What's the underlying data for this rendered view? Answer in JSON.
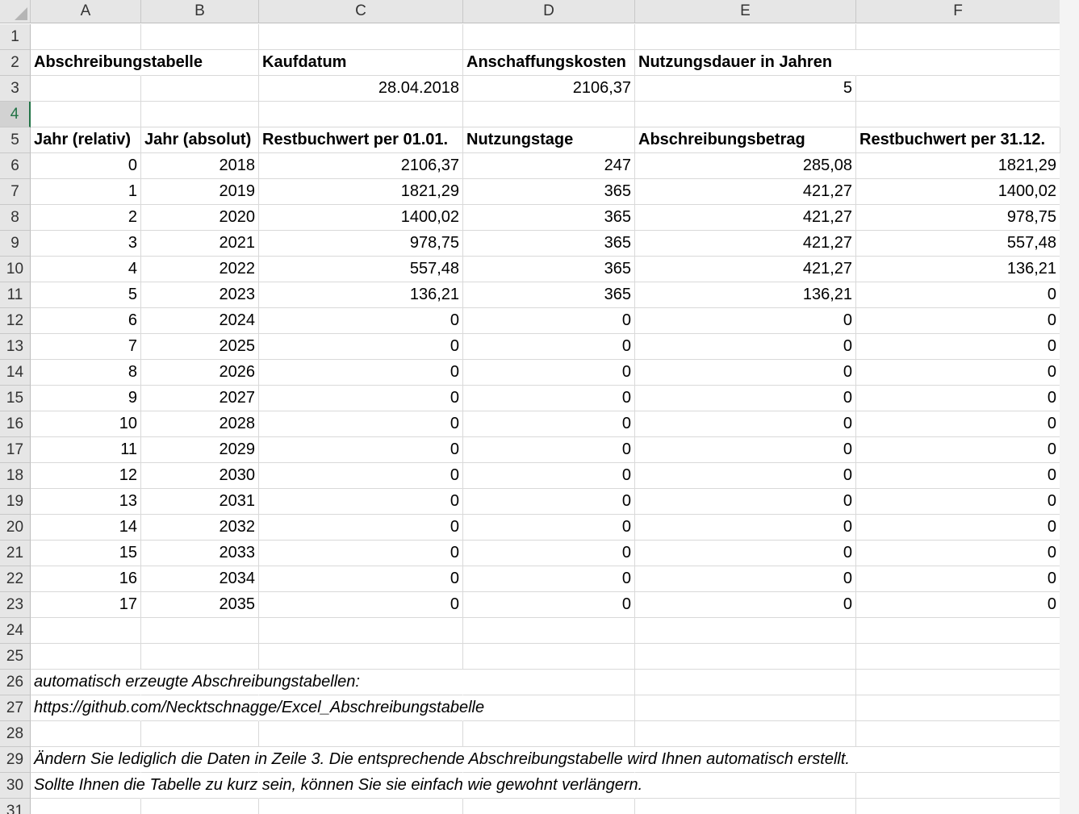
{
  "columns": [
    "A",
    "B",
    "C",
    "D",
    "E",
    "F"
  ],
  "row_numbers": [
    "1",
    "2",
    "3",
    "4",
    "5",
    "6",
    "7",
    "8",
    "9",
    "10",
    "11",
    "12",
    "13",
    "14",
    "15",
    "16",
    "17",
    "18",
    "19",
    "20",
    "21",
    "22",
    "23",
    "24",
    "25",
    "26",
    "27",
    "28",
    "29",
    "30",
    "31"
  ],
  "info": {
    "title": "Abschreibungstabelle",
    "purchase_date_label": "Kaufdatum",
    "cost_label": "Anschaffungskosten",
    "life_label": "Nutzungsdauer in Jahren",
    "purchase_date": "28.04.2018",
    "cost": "2106,37",
    "life": "5"
  },
  "table_headers": [
    "Jahr (relativ)",
    "Jahr (absolut)",
    "Restbuchwert per 01.01.",
    "Nutzungstage",
    "Abschreibungsbetrag",
    "Restbuchwert per 31.12."
  ],
  "table_rows": [
    [
      "0",
      "2018",
      "2106,37",
      "247",
      "285,08",
      "1821,29"
    ],
    [
      "1",
      "2019",
      "1821,29",
      "365",
      "421,27",
      "1400,02"
    ],
    [
      "2",
      "2020",
      "1400,02",
      "365",
      "421,27",
      "978,75"
    ],
    [
      "3",
      "2021",
      "978,75",
      "365",
      "421,27",
      "557,48"
    ],
    [
      "4",
      "2022",
      "557,48",
      "365",
      "421,27",
      "136,21"
    ],
    [
      "5",
      "2023",
      "136,21",
      "365",
      "136,21",
      "0"
    ],
    [
      "6",
      "2024",
      "0",
      "0",
      "0",
      "0"
    ],
    [
      "7",
      "2025",
      "0",
      "0",
      "0",
      "0"
    ],
    [
      "8",
      "2026",
      "0",
      "0",
      "0",
      "0"
    ],
    [
      "9",
      "2027",
      "0",
      "0",
      "0",
      "0"
    ],
    [
      "10",
      "2028",
      "0",
      "0",
      "0",
      "0"
    ],
    [
      "11",
      "2029",
      "0",
      "0",
      "0",
      "0"
    ],
    [
      "12",
      "2030",
      "0",
      "0",
      "0",
      "0"
    ],
    [
      "13",
      "2031",
      "0",
      "0",
      "0",
      "0"
    ],
    [
      "14",
      "2032",
      "0",
      "0",
      "0",
      "0"
    ],
    [
      "15",
      "2033",
      "0",
      "0",
      "0",
      "0"
    ],
    [
      "16",
      "2034",
      "0",
      "0",
      "0",
      "0"
    ],
    [
      "17",
      "2035",
      "0",
      "0",
      "0",
      "0"
    ]
  ],
  "notes": {
    "auto_label": "automatisch erzeugte Abschreibungstabellen:",
    "url": "https://github.com/Necktschnagge/Excel_Abschreibungstabelle",
    "instruction1": "Ändern Sie lediglich die Daten in Zeile 3. Die entsprechende Abschreibungstabelle wird Ihnen automatisch erstellt.",
    "instruction2": "Sollte Ihnen die Tabelle zu kurz sein, können Sie sie einfach wie gewohnt verlängern."
  },
  "colors": {
    "accent": "#217346",
    "header_bg": "#e6e6e6",
    "gridline": "#d9d9d9"
  }
}
